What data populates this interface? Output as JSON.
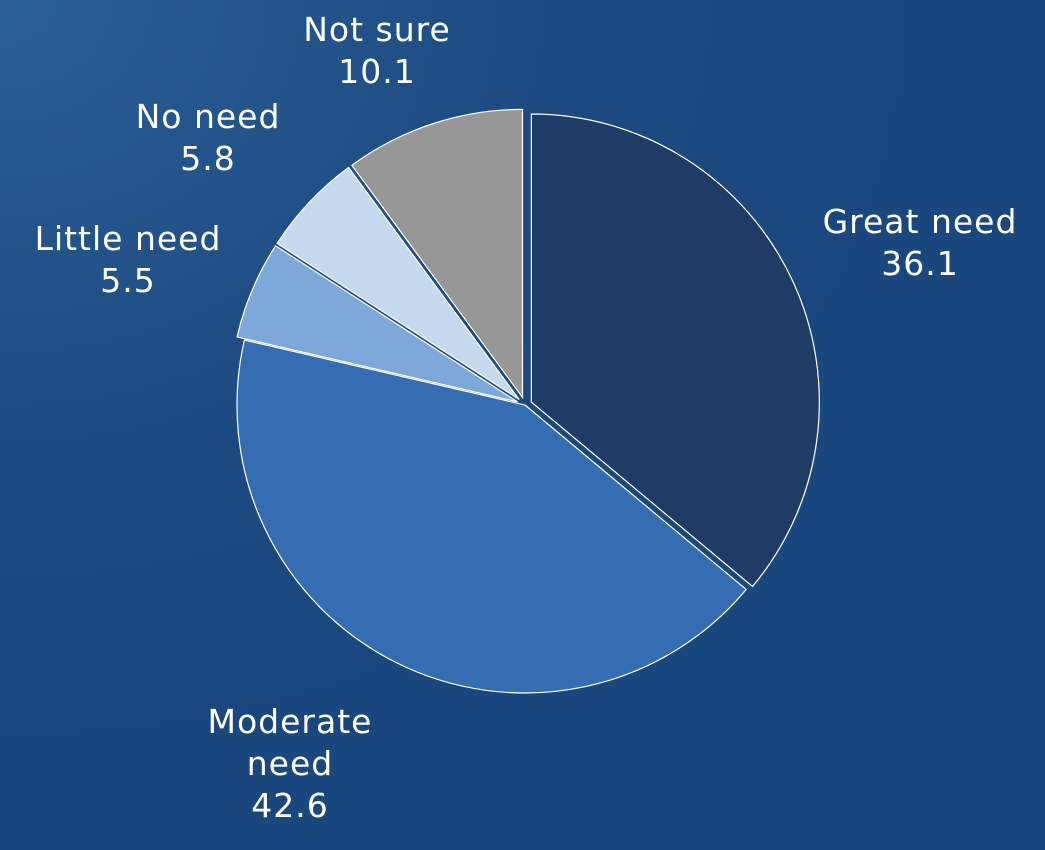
{
  "chart_data": {
    "type": "pie",
    "slices": [
      {
        "label_lines": [
          "Great need"
        ],
        "value": 36.1,
        "value_text": "36.1",
        "color": "#1e3c66"
      },
      {
        "label_lines": [
          "Moderate",
          "need"
        ],
        "value": 42.6,
        "value_text": "42.6",
        "color": "#346db2"
      },
      {
        "label_lines": [
          "Little need"
        ],
        "value": 5.5,
        "value_text": "5.5",
        "color": "#7ea7da"
      },
      {
        "label_lines": [
          "No need"
        ],
        "value": 5.8,
        "value_text": "5.8",
        "color": "#c7d9ef"
      },
      {
        "label_lines": [
          "Not sure"
        ],
        "value": 10.1,
        "value_text": "10.1",
        "color": "#979797"
      }
    ],
    "start_angle": "12 o'clock",
    "direction": "clockwise",
    "exploded_slices": [
      "Great need",
      "Little need",
      "No need",
      "Not sure"
    ],
    "legend": "none"
  }
}
